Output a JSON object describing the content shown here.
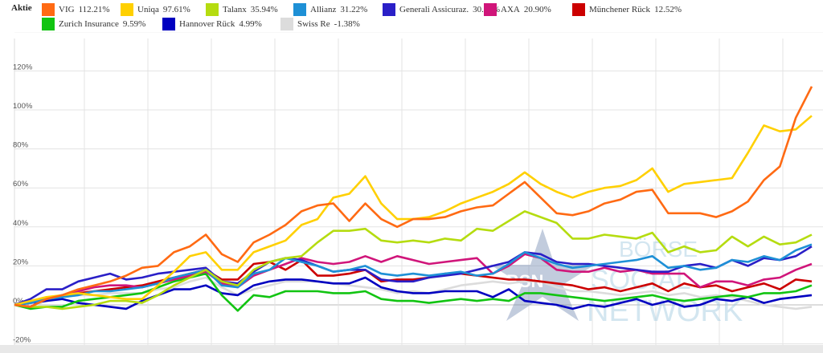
{
  "chart_data": {
    "type": "line",
    "title": "",
    "legend_title": "Aktie",
    "legend_position": "top",
    "xlabel": "",
    "ylabel": "",
    "ylim": [
      -20,
      140
    ],
    "yticks": [
      "-20%",
      "0%",
      "20%",
      "40%",
      "60%",
      "80%",
      "100%",
      "120%"
    ],
    "grid": true,
    "series": [
      {
        "name": "VIG",
        "total": "112.21%",
        "color": "#ff6a13",
        "values": [
          0,
          -1,
          3,
          5,
          8,
          10,
          12,
          15,
          19,
          20,
          27,
          30,
          36,
          26,
          22,
          32,
          36,
          41,
          48,
          51,
          52,
          43,
          52,
          44,
          40,
          44,
          44,
          45,
          48,
          50,
          51,
          57,
          63,
          55,
          47,
          46,
          48,
          52,
          54,
          58,
          59,
          47,
          47,
          47,
          45,
          48,
          53,
          64,
          71,
          96,
          112
        ]
      },
      {
        "name": "Uniqa",
        "total": "97.61%",
        "color": "#ffd000",
        "values": [
          0,
          2,
          4,
          5,
          6,
          5,
          4,
          3,
          3,
          10,
          17,
          25,
          27,
          18,
          18,
          27,
          30,
          33,
          41,
          44,
          55,
          57,
          66,
          52,
          44,
          44,
          45,
          48,
          52,
          55,
          58,
          62,
          68,
          62,
          58,
          55,
          58,
          60,
          61,
          64,
          70,
          58,
          62,
          63,
          64,
          65,
          78,
          92,
          89,
          90,
          97
        ]
      },
      {
        "name": "Talanx",
        "total": "35.94%",
        "color": "#b5dc10",
        "values": [
          0,
          -1,
          -1,
          -2,
          -1,
          0,
          2,
          2,
          1,
          5,
          10,
          14,
          18,
          12,
          10,
          18,
          22,
          24,
          25,
          32,
          38,
          38,
          39,
          33,
          32,
          33,
          32,
          34,
          33,
          39,
          38,
          43,
          48,
          45,
          42,
          34,
          34,
          36,
          35,
          34,
          37,
          27,
          30,
          27,
          28,
          35,
          30,
          35,
          31,
          32,
          36
        ]
      },
      {
        "name": "Allianz",
        "total": "31.22%",
        "color": "#1e90d6",
        "values": [
          0,
          1,
          3,
          4,
          5,
          7,
          7,
          8,
          9,
          11,
          14,
          16,
          18,
          10,
          9,
          16,
          18,
          24,
          22,
          20,
          17,
          18,
          20,
          16,
          15,
          16,
          15,
          16,
          17,
          15,
          16,
          21,
          27,
          24,
          21,
          19,
          20,
          21,
          22,
          23,
          25,
          19,
          20,
          18,
          19,
          23,
          22,
          25,
          23,
          28,
          31
        ]
      },
      {
        "name": "Generali Assicuraz.",
        "total": "30.32%",
        "color": "#2a1fc7",
        "values": [
          0,
          3,
          8,
          8,
          12,
          14,
          16,
          13,
          14,
          16,
          17,
          18,
          19,
          12,
          11,
          17,
          22,
          24,
          23,
          20,
          17,
          18,
          18,
          13,
          12,
          12,
          14,
          15,
          16,
          18,
          20,
          22,
          27,
          26,
          22,
          21,
          21,
          20,
          19,
          18,
          17,
          17,
          20,
          21,
          19,
          23,
          20,
          24,
          23,
          25,
          30
        ]
      },
      {
        "name": "AXA",
        "total": "20.90%",
        "color": "#d0157a",
        "values": [
          0,
          1,
          3,
          5,
          7,
          9,
          10,
          10,
          9,
          11,
          13,
          15,
          17,
          11,
          9,
          15,
          18,
          21,
          24,
          22,
          21,
          22,
          25,
          22,
          25,
          23,
          21,
          22,
          23,
          24,
          16,
          20,
          26,
          24,
          18,
          17,
          17,
          19,
          17,
          18,
          16,
          16,
          16,
          9,
          12,
          12,
          10,
          13,
          14,
          18,
          21
        ]
      },
      {
        "name": "Münchener Rück",
        "total": "12.52%",
        "color": "#cc0000",
        "values": [
          0,
          -1,
          3,
          5,
          6,
          7,
          8,
          9,
          10,
          12,
          14,
          16,
          18,
          13,
          13,
          21,
          22,
          18,
          23,
          15,
          15,
          16,
          18,
          12,
          13,
          13,
          14,
          16,
          16,
          15,
          14,
          13,
          13,
          12,
          11,
          10,
          8,
          9,
          7,
          9,
          11,
          7,
          11,
          9,
          10,
          7,
          9,
          11,
          8,
          13,
          12
        ]
      },
      {
        "name": "Zurich Insurance",
        "total": "9.59%",
        "color": "#11c411",
        "values": [
          0,
          -2,
          -1,
          -1,
          2,
          3,
          4,
          5,
          6,
          9,
          12,
          14,
          16,
          5,
          -3,
          5,
          4,
          7,
          7,
          7,
          6,
          6,
          7,
          3,
          2,
          2,
          1,
          2,
          3,
          2,
          3,
          2,
          6,
          6,
          5,
          4,
          3,
          2,
          3,
          4,
          5,
          3,
          2,
          3,
          4,
          5,
          4,
          6,
          6,
          7,
          10
        ]
      },
      {
        "name": "Hannover Rück",
        "total": "4.99%",
        "color": "#0000c0",
        "values": [
          0,
          1,
          2,
          3,
          1,
          0,
          -1,
          -2,
          2,
          5,
          8,
          8,
          10,
          6,
          5,
          10,
          12,
          13,
          13,
          12,
          11,
          11,
          14,
          9,
          7,
          6,
          6,
          7,
          7,
          7,
          4,
          8,
          2,
          1,
          0,
          -2,
          0,
          -1,
          1,
          3,
          0,
          2,
          -1,
          0,
          3,
          2,
          4,
          1,
          3,
          4,
          5
        ]
      },
      {
        "name": "Swiss Re",
        "total": "-1.38%",
        "color": "#dcdcdc",
        "values": [
          0,
          -1,
          2,
          4,
          5,
          5,
          6,
          6,
          6,
          8,
          9,
          12,
          14,
          9,
          5,
          8,
          10,
          12,
          12,
          12,
          11,
          10,
          9,
          8,
          6,
          7,
          6,
          8,
          10,
          11,
          12,
          11,
          12,
          12,
          9,
          7,
          7,
          6,
          5,
          6,
          7,
          5,
          6,
          4,
          5,
          4,
          2,
          0,
          -1,
          -2,
          -1
        ]
      }
    ]
  },
  "watermark": {
    "line1": "BÖRSE",
    "line2": "SOCIAL",
    "line3": "NETWORK",
    "star": "BSN"
  }
}
